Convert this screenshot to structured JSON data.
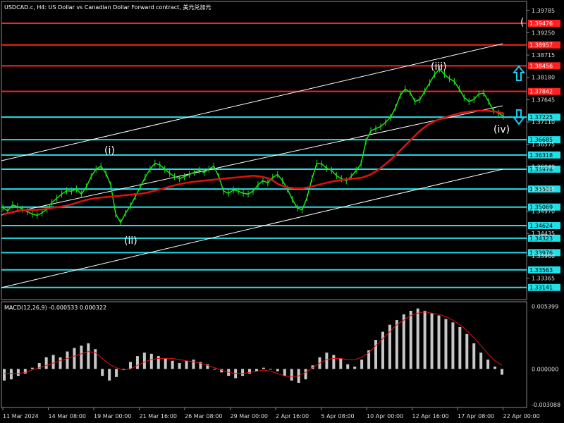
{
  "header": {
    "title": "USDCAD.c, H4:  US Dollar vs Canadian Dollar Forward contract, 美元兑加元"
  },
  "price_axis": {
    "ticks": [
      "1.39785",
      "1.39250",
      "1.38715",
      "1.38180",
      "1.37645",
      "1.37110",
      "1.36575",
      "1.36040",
      "1.35505",
      "1.34970",
      "1.34435",
      "1.33900",
      "1.33365"
    ],
    "min": 1.329,
    "max": 1.3995
  },
  "levels": [
    {
      "label": "1.39476",
      "price": 1.39476,
      "color": "#ff2020"
    },
    {
      "label": "1.38957",
      "price": 1.38957,
      "color": "#ff2020"
    },
    {
      "label": "1.38456",
      "price": 1.38456,
      "color": "#ff2020"
    },
    {
      "label": "1.37842",
      "price": 1.37842,
      "color": "#ff2020"
    },
    {
      "label": "1.37225",
      "price": 1.37225,
      "color": "#20e0e8"
    },
    {
      "label": "1.36685",
      "price": 1.36685,
      "color": "#20e0e8"
    },
    {
      "label": "1.36318",
      "price": 1.36318,
      "color": "#20e0e8"
    },
    {
      "label": "1.35978",
      "price": 1.35978,
      "color": "#20e0e8"
    },
    {
      "label": "1.35501",
      "price": 1.35501,
      "color": "#20e0e8"
    },
    {
      "label": "1.35069",
      "price": 1.35069,
      "color": "#20e0e8"
    },
    {
      "label": "1.34624",
      "price": 1.34624,
      "color": "#20e0e8"
    },
    {
      "label": "1.34323",
      "price": 1.34323,
      "color": "#20e0e8"
    },
    {
      "label": "1.33976",
      "price": 1.33976,
      "color": "#20e0e8"
    },
    {
      "label": "1.33563",
      "price": 1.33563,
      "color": "#20e0e8"
    },
    {
      "label": "1.33141",
      "price": 1.33141,
      "color": "#20e0e8"
    }
  ],
  "wave_labels": [
    "(i)",
    "(ii)",
    "(iii)",
    "(iv)",
    "("
  ],
  "macd": {
    "title": "MACD(12,26,9) -0.000533 0.000322",
    "ticks": [
      "0.005399",
      "0.000000",
      "-0.003088"
    ],
    "min": -0.0032,
    "max": 0.0056
  },
  "time_axis": [
    "11 Mar 2024",
    "14 Mar 08:00",
    "19 Mar 00:00",
    "21 Mar 16:00",
    "26 Mar 08:00",
    "29 Mar 00:00",
    "2 Apr 16:00",
    "5 Apr 08:00",
    "10 Apr 00:00",
    "12 Apr 16:00",
    "17 Apr 08:00",
    "22 Apr 00:00"
  ],
  "chart_data": {
    "type": "line",
    "series": [
      {
        "values": [
          1.3505,
          1.3498,
          1.3512,
          1.3508,
          1.3502,
          1.3496,
          1.349,
          1.3487,
          1.3493,
          1.3502,
          1.3518,
          1.3528,
          1.3538,
          1.3546,
          1.3545,
          1.355,
          1.3538,
          1.3555,
          1.358,
          1.3598,
          1.3605,
          1.3588,
          1.356,
          1.349,
          1.347,
          1.3492,
          1.351,
          1.3532,
          1.3555,
          1.3578,
          1.3598,
          1.3612,
          1.3608,
          1.3598,
          1.3588,
          1.358,
          1.3575,
          1.358,
          1.3585,
          1.359,
          1.3595,
          1.359,
          1.3598,
          1.3605,
          1.358,
          1.3545,
          1.354,
          1.3548,
          1.3545,
          1.354,
          1.3538,
          1.3545,
          1.356,
          1.357,
          1.3565,
          1.3578,
          1.3585,
          1.357,
          1.355,
          1.3525,
          1.3505,
          1.35,
          1.353,
          1.3575,
          1.3612,
          1.361,
          1.36,
          1.3595,
          1.3582,
          1.3575,
          1.357,
          1.358,
          1.3595,
          1.361,
          1.3665,
          1.369,
          1.3695,
          1.37,
          1.371,
          1.3722,
          1.3745,
          1.3775,
          1.379,
          1.3782,
          1.376,
          1.3765,
          1.3785,
          1.3805,
          1.3825,
          1.3838,
          1.3825,
          1.3815,
          1.3808,
          1.379,
          1.377,
          1.376,
          1.3765,
          1.3778,
          1.378,
          1.376,
          1.3738,
          1.3732,
          1.3725
        ]
      }
    ],
    "moving_average": [
      1.349,
      1.3494,
      1.3499,
      1.35,
      1.35,
      1.3502,
      1.3505,
      1.3508,
      1.3512,
      1.3518,
      1.3524,
      1.3528,
      1.353,
      1.3532,
      1.3534,
      1.3536,
      1.3538,
      1.354,
      1.3545,
      1.355,
      1.3556,
      1.3561,
      1.3565,
      1.3568,
      1.357,
      1.3572,
      1.3574,
      1.3576,
      1.3578,
      1.358,
      1.3582,
      1.358,
      1.3575,
      1.3562,
      1.3554,
      1.3552,
      1.3552,
      1.3556,
      1.3561,
      1.3566,
      1.357,
      1.3573,
      1.3575,
      1.3577,
      1.3584,
      1.3596,
      1.3612,
      1.363,
      1.365,
      1.367,
      1.369,
      1.3705,
      1.3715,
      1.3722,
      1.3728,
      1.3733,
      1.3736,
      1.3738,
      1.3738,
      1.3736,
      1.3732
    ],
    "macd_histogram": [
      -0.001,
      -0.0009,
      -0.0006,
      -0.0004,
      0.0001,
      0.0005,
      0.001,
      0.0012,
      0.001,
      0.0015,
      0.0018,
      0.002,
      0.0022,
      0.0017,
      -0.0006,
      -0.001,
      -0.0007,
      -0.0001,
      0.0006,
      0.0011,
      0.0014,
      0.0013,
      0.0011,
      0.0009,
      0.0007,
      0.0005,
      0.0007,
      0.0008,
      0.0006,
      0.0004,
      0.0,
      -0.0003,
      -0.0006,
      -0.0008,
      -0.0006,
      -0.0004,
      -0.0002,
      0.0001,
      0.0,
      -0.0002,
      -0.0006,
      -0.001,
      -0.0012,
      -0.0009,
      0.0003,
      0.001,
      0.0014,
      0.0012,
      0.0009,
      0.0004,
      0.0002,
      0.0008,
      0.0016,
      0.0025,
      0.0032,
      0.0038,
      0.0042,
      0.0047,
      0.005,
      0.0052,
      0.005,
      0.0048,
      0.0046,
      0.0043,
      0.004,
      0.0036,
      0.003,
      0.0022,
      0.0014,
      0.0008,
      0.0002,
      -0.0005
    ],
    "macd_signal": [
      -0.0004,
      -0.0004,
      -0.0004,
      -0.0003,
      -0.0001,
      0.0001,
      0.0003,
      0.0005,
      0.0007,
      0.0009,
      0.0011,
      0.0013,
      0.0015,
      0.0014,
      0.0009,
      0.0004,
      0.0001,
      -0.0001,
      0.0,
      0.0003,
      0.0006,
      0.0008,
      0.0009,
      0.0009,
      0.0009,
      0.0008,
      0.0007,
      0.0006,
      0.0005,
      0.0003,
      0.0001,
      -0.0001,
      -0.0003,
      -0.0004,
      -0.0004,
      -0.0003,
      -0.0002,
      -0.0001,
      -0.0002,
      -0.0004,
      -0.0006,
      -0.0007,
      -0.0006,
      -0.0003,
      0.0001,
      0.0005,
      0.0008,
      0.0009,
      0.0009,
      0.0008,
      0.0008,
      0.001,
      0.0014,
      0.002,
      0.0026,
      0.0032,
      0.0038,
      0.0042,
      0.0046,
      0.0048,
      0.0049,
      0.0048,
      0.0047,
      0.0045,
      0.0042,
      0.0038,
      0.0033,
      0.0027,
      0.002,
      0.0013,
      0.0007,
      0.0003
    ]
  }
}
